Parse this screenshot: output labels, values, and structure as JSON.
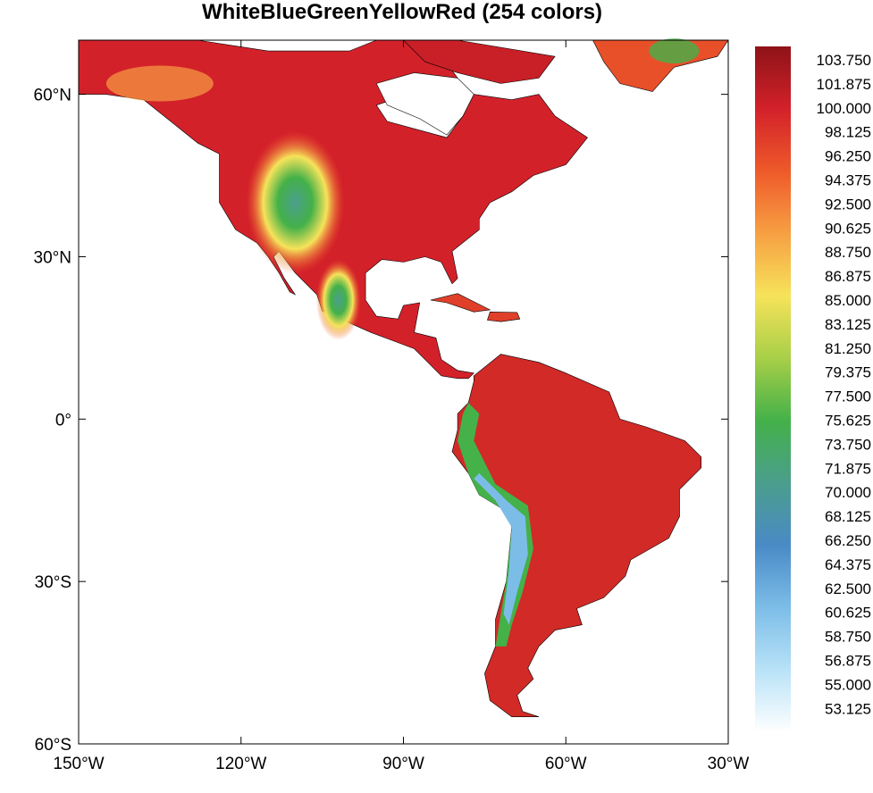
{
  "title": "WhiteBlueGreenYellowRed (254 colors)",
  "map": {
    "lon_range": [
      -150,
      -30
    ],
    "lat_range": [
      -60,
      70
    ],
    "x_ticks": [
      {
        "value": -150,
        "label": "150°W"
      },
      {
        "value": -120,
        "label": "120°W"
      },
      {
        "value": -90,
        "label": "90°W"
      },
      {
        "value": -60,
        "label": "60°W"
      },
      {
        "value": -30,
        "label": "30°W"
      }
    ],
    "y_ticks": [
      {
        "value": 60,
        "label": "60°N"
      },
      {
        "value": 30,
        "label": "30°N"
      },
      {
        "value": 0,
        "label": "0°"
      },
      {
        "value": -30,
        "label": "30°S"
      },
      {
        "value": -60,
        "label": "60°S"
      }
    ]
  },
  "colorbar": {
    "labels": [
      "103.750",
      "101.875",
      "100.000",
      "98.125",
      "96.250",
      "94.375",
      "92.500",
      "90.625",
      "88.750",
      "86.875",
      "85.000",
      "83.125",
      "81.250",
      "79.375",
      "77.500",
      "75.625",
      "73.750",
      "71.875",
      "70.000",
      "68.125",
      "66.250",
      "64.375",
      "62.500",
      "60.625",
      "58.750",
      "56.875",
      "55.000",
      "53.125"
    ],
    "colors_top_to_bottom": [
      "#8e1318",
      "#d3212a",
      "#ee5a2a",
      "#f7a043",
      "#f6e35a",
      "#a8cf48",
      "#44b149",
      "#4a9e8c",
      "#4a8ac6",
      "#7cbde8",
      "#b8e2f7",
      "#ffffff"
    ]
  }
}
